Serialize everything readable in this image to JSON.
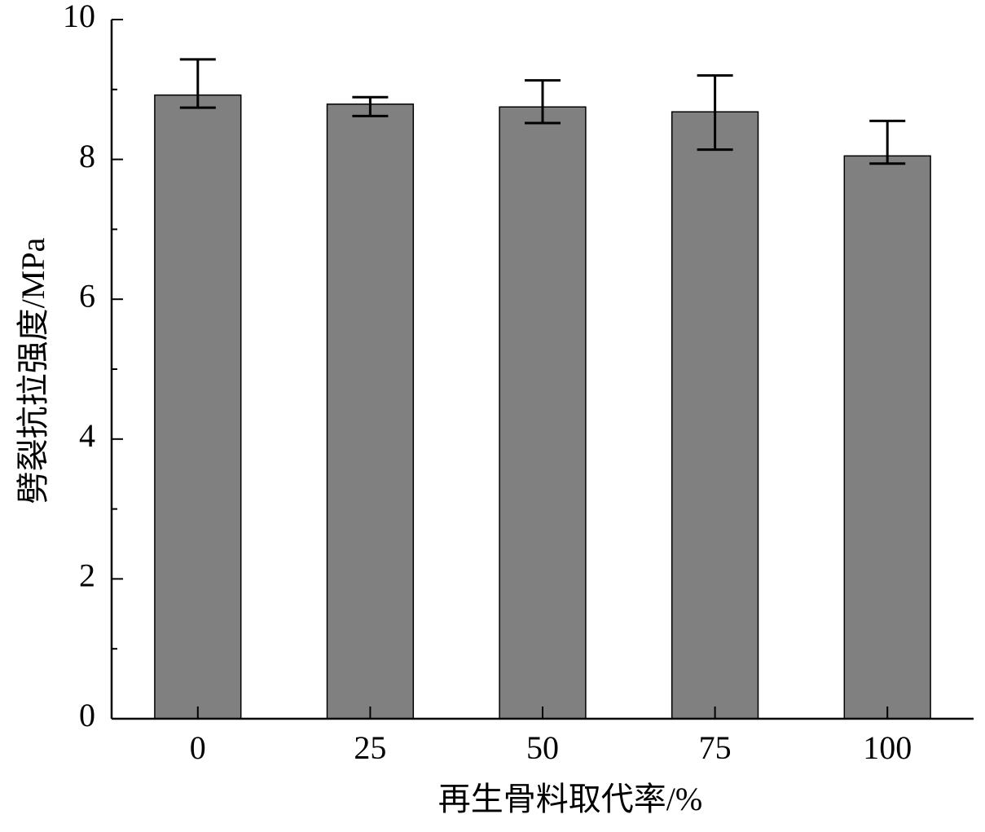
{
  "chart_data": {
    "type": "bar",
    "x_label": "再生骨料取代率/%",
    "y_label": "劈裂抗拉强度/MPa",
    "categories": [
      "0",
      "25",
      "50",
      "75",
      "100"
    ],
    "values": [
      8.92,
      8.79,
      8.75,
      8.68,
      8.05
    ],
    "error_plus": [
      0.51,
      0.1,
      0.38,
      0.52,
      0.5
    ],
    "error_minus": [
      0.18,
      0.17,
      0.23,
      0.54,
      0.11
    ],
    "color": "#808080",
    "ylim": [
      0,
      10
    ],
    "yticks": [
      0,
      2,
      4,
      6,
      8,
      10
    ],
    "yminorticks": [
      1,
      3,
      5,
      7,
      9
    ],
    "grid": false
  }
}
